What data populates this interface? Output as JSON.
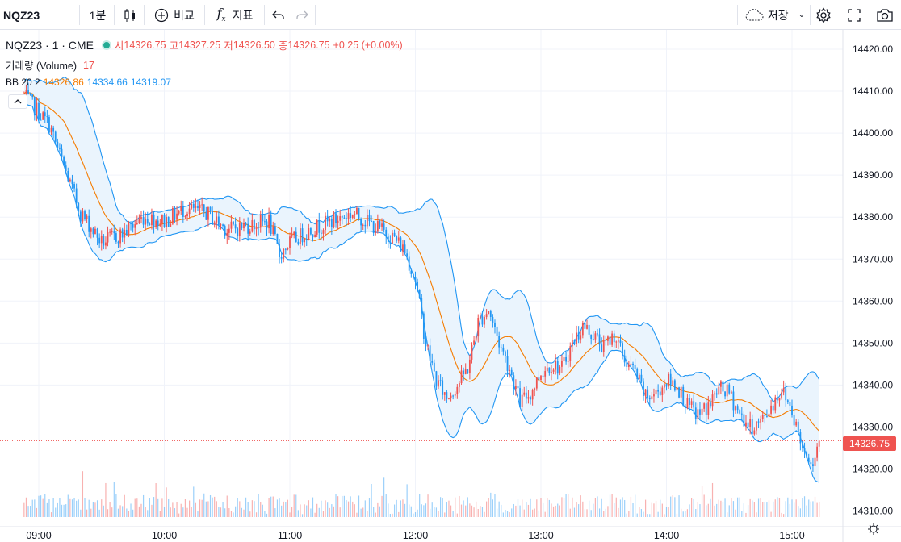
{
  "toolbar": {
    "symbol": "NQZ23",
    "interval": "1분",
    "compare_label": "비교",
    "indicators_label": "지표",
    "save_label": "저장"
  },
  "legend": {
    "title": "NQZ23 · 1 · CME",
    "open_label": "시",
    "open": "14326.75",
    "high_label": "고",
    "high": "14327.25",
    "low_label": "저",
    "low": "14326.50",
    "close_label": "종",
    "close": "14326.75",
    "change": "+0.25 (+0.00%)",
    "volume_label": "거래량 (Volume)",
    "volume": "17",
    "bb_label": "BB 20 2",
    "bb_basis": "14326.86",
    "bb_upper": "14334.66",
    "bb_lower": "14319.07"
  },
  "current_price": "14326.75",
  "colors": {
    "up": "#ef5350",
    "down": "#2196f3",
    "basis": "#f57c00",
    "band": "#2196f3",
    "band_fill": "#eaf4fd",
    "grid": "#f0f3fa"
  },
  "chart_data": {
    "type": "line",
    "title": "NQZ23 · 1 · CME",
    "y_axis": {
      "ylim": [
        14308,
        14426
      ],
      "ticks": [
        14310,
        14320,
        14330,
        14340,
        14350,
        14360,
        14370,
        14380,
        14390,
        14400,
        14410,
        14420
      ],
      "tick_labels": [
        "14310.00",
        "14320.00",
        "14330.00",
        "14340.00",
        "14350.00",
        "14360.00",
        "14370.00",
        "14380.00",
        "14390.00",
        "14400.00",
        "14410.00",
        "14420.00"
      ]
    },
    "x_axis": {
      "ticks": [
        "09:00",
        "10:00",
        "11:00",
        "12:00",
        "13:00",
        "14:00",
        "15:00"
      ],
      "start_time": "08:53",
      "end_time": "15:13",
      "minutes_per_bar": 1
    },
    "grid": true,
    "series": [
      {
        "name": "BB 20 2",
        "price_anchors": [
          [
            "08:53",
            14409
          ],
          [
            "09:05",
            14402
          ],
          [
            "09:12",
            14392
          ],
          [
            "09:20",
            14381
          ],
          [
            "09:30",
            14374
          ],
          [
            "09:40",
            14376
          ],
          [
            "09:50",
            14380
          ],
          [
            "10:00",
            14379
          ],
          [
            "10:10",
            14382
          ],
          [
            "10:20",
            14381
          ],
          [
            "10:30",
            14377
          ],
          [
            "10:40",
            14378
          ],
          [
            "10:50",
            14379
          ],
          [
            "10:55",
            14371
          ],
          [
            "11:00",
            14374
          ],
          [
            "11:10",
            14377
          ],
          [
            "11:20",
            14379
          ],
          [
            "11:30",
            14381
          ],
          [
            "11:40",
            14378
          ],
          [
            "11:50",
            14375
          ],
          [
            "11:55",
            14372
          ],
          [
            "12:00",
            14365
          ],
          [
            "12:05",
            14350
          ],
          [
            "12:10",
            14341
          ],
          [
            "12:15",
            14337
          ],
          [
            "12:20",
            14340
          ],
          [
            "12:25",
            14344
          ],
          [
            "12:30",
            14355
          ],
          [
            "12:35",
            14358
          ],
          [
            "12:40",
            14350
          ],
          [
            "12:45",
            14344
          ],
          [
            "12:50",
            14336
          ],
          [
            "12:55",
            14338
          ],
          [
            "13:00",
            14343
          ],
          [
            "13:05",
            14345
          ],
          [
            "13:10",
            14344
          ],
          [
            "13:15",
            14350
          ],
          [
            "13:20",
            14354
          ],
          [
            "13:25",
            14352
          ],
          [
            "13:30",
            14349
          ],
          [
            "13:35",
            14352
          ],
          [
            "13:40",
            14346
          ],
          [
            "13:45",
            14343
          ],
          [
            "13:50",
            14337
          ],
          [
            "13:55",
            14338
          ],
          [
            "14:00",
            14341
          ],
          [
            "14:05",
            14340
          ],
          [
            "14:10",
            14335
          ],
          [
            "14:15",
            14333
          ],
          [
            "14:20",
            14335
          ],
          [
            "14:25",
            14339
          ],
          [
            "14:30",
            14338
          ],
          [
            "14:35",
            14333
          ],
          [
            "14:40",
            14330
          ],
          [
            "14:45",
            14331
          ],
          [
            "14:50",
            14335
          ],
          [
            "14:55",
            14339
          ],
          [
            "15:00",
            14334
          ],
          [
            "15:05",
            14325
          ],
          [
            "15:10",
            14322
          ],
          [
            "15:13",
            14326.75
          ]
        ]
      }
    ],
    "volume_max": 17
  }
}
